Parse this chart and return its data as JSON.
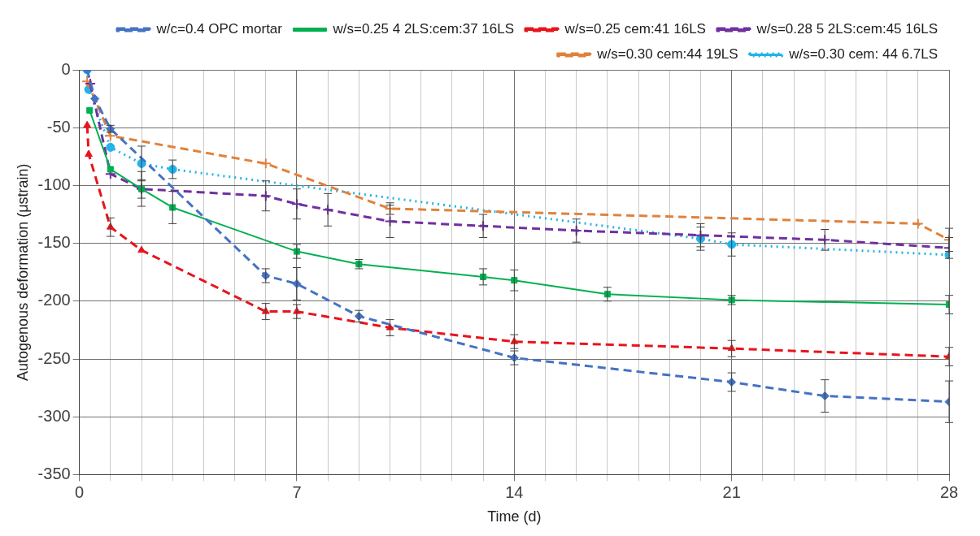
{
  "chart_data": {
    "type": "line",
    "xlabel": "Time (d)",
    "ylabel": "Autogenous deformation (μstrain)",
    "xlim": [
      0,
      28
    ],
    "ylim": [
      -350,
      0
    ],
    "xticks": [
      0,
      {
        "value": 1,
        "label": null
      },
      {
        "value": 2,
        "label": null
      },
      {
        "value": 3,
        "label": null
      },
      {
        "value": 4,
        "label": null
      },
      {
        "value": 5,
        "label": null
      },
      {
        "value": 6,
        "label": null
      },
      7,
      {
        "value": 8,
        "label": null
      },
      {
        "value": 9,
        "label": null
      },
      {
        "value": 10,
        "label": null
      },
      {
        "value": 11,
        "label": null
      },
      {
        "value": 12,
        "label": null
      },
      {
        "value": 13,
        "label": null
      },
      14,
      {
        "value": 15,
        "label": null
      },
      {
        "value": 16,
        "label": null
      },
      {
        "value": 17,
        "label": null
      },
      {
        "value": 18,
        "label": null
      },
      {
        "value": 19,
        "label": null
      },
      {
        "value": 20,
        "label": null
      },
      21,
      {
        "value": 22,
        "label": null
      },
      {
        "value": 23,
        "label": null
      },
      {
        "value": 24,
        "label": null
      },
      {
        "value": 25,
        "label": null
      },
      {
        "value": 26,
        "label": null
      },
      {
        "value": 27,
        "label": null
      },
      28
    ],
    "yticks": [
      0,
      -50,
      -100,
      -150,
      -200,
      -250,
      -300,
      -350
    ],
    "grid": true,
    "legend": "top right",
    "series": [
      {
        "name": "w/c=0.4 OPC mortar",
        "color": "#4472c4",
        "marker": "diamond",
        "line_style": "dashed",
        "x": [
          0.25,
          0.5,
          1,
          6,
          7,
          9,
          14,
          21,
          24,
          28
        ],
        "values": [
          0,
          -25,
          -51,
          -178,
          -185,
          -213,
          -249,
          -270,
          -282,
          -287
        ],
        "errors": [
          null,
          null,
          3,
          6,
          14,
          5,
          6,
          8,
          14,
          18
        ]
      },
      {
        "name": "w/s=0.25 4 2LS:cem:37 16LS",
        "color": "#00b050",
        "marker": "square",
        "line_style": "solid",
        "x": [
          0.33,
          1,
          2,
          3,
          7,
          9,
          13,
          14,
          17,
          21,
          28
        ],
        "values": [
          -35,
          -86,
          -103,
          -119,
          -157,
          -168,
          -179,
          -182,
          -194,
          -199,
          -203
        ],
        "errors": [
          null,
          null,
          8,
          14,
          6,
          4,
          7,
          9,
          6,
          4,
          8
        ]
      },
      {
        "name": "w/s=0.25 cem:41 16LS",
        "color": "#e8141c",
        "marker": "triangle",
        "line_style": "dashed",
        "x": [
          0.25,
          0.3,
          1,
          2,
          6,
          7,
          10,
          14,
          21,
          28
        ],
        "values": [
          -48,
          -73,
          -136,
          -156,
          -209,
          -209,
          -223,
          -235,
          -241,
          -248
        ],
        "errors": [
          null,
          null,
          8,
          null,
          7,
          6,
          7,
          6,
          7,
          8
        ]
      },
      {
        "name": "w/s=0.28 5 2LS:cem:45 16LS",
        "color": "#7030a0",
        "marker": "cross",
        "line_style": "dashed",
        "x": [
          0.35,
          1,
          2,
          6,
          7,
          8,
          10,
          13,
          16,
          20,
          24,
          28
        ],
        "values": [
          -12,
          -90,
          -103,
          -109,
          -116,
          -121,
          -131,
          -135,
          -139,
          -143,
          -147,
          -154
        ],
        "errors": [
          null,
          null,
          15,
          13,
          13,
          14,
          14,
          10,
          10,
          10,
          9,
          9
        ]
      },
      {
        "name": "w/s=0.30 cem:44 19LS",
        "color": "#e0823c",
        "marker": "cross",
        "line_style": "dashed",
        "x": [
          0.25,
          1,
          6,
          10,
          27,
          28
        ],
        "values": [
          -10,
          -57,
          -81,
          -120,
          -133,
          -147
        ],
        "errors": [
          null,
          null,
          null,
          5,
          null,
          10
        ]
      },
      {
        "name": "w/s=0.30 cem: 44 6.7LS",
        "color": "#1fb4ea",
        "marker": "circle",
        "line_style": "dotted",
        "x": [
          0.25,
          0.3,
          1,
          2,
          3,
          20,
          21,
          28
        ],
        "values": [
          0,
          -17,
          -67,
          -81,
          -86,
          -146,
          -151,
          -160
        ],
        "errors": [
          null,
          null,
          null,
          15,
          8,
          10,
          10,
          null
        ]
      }
    ]
  }
}
